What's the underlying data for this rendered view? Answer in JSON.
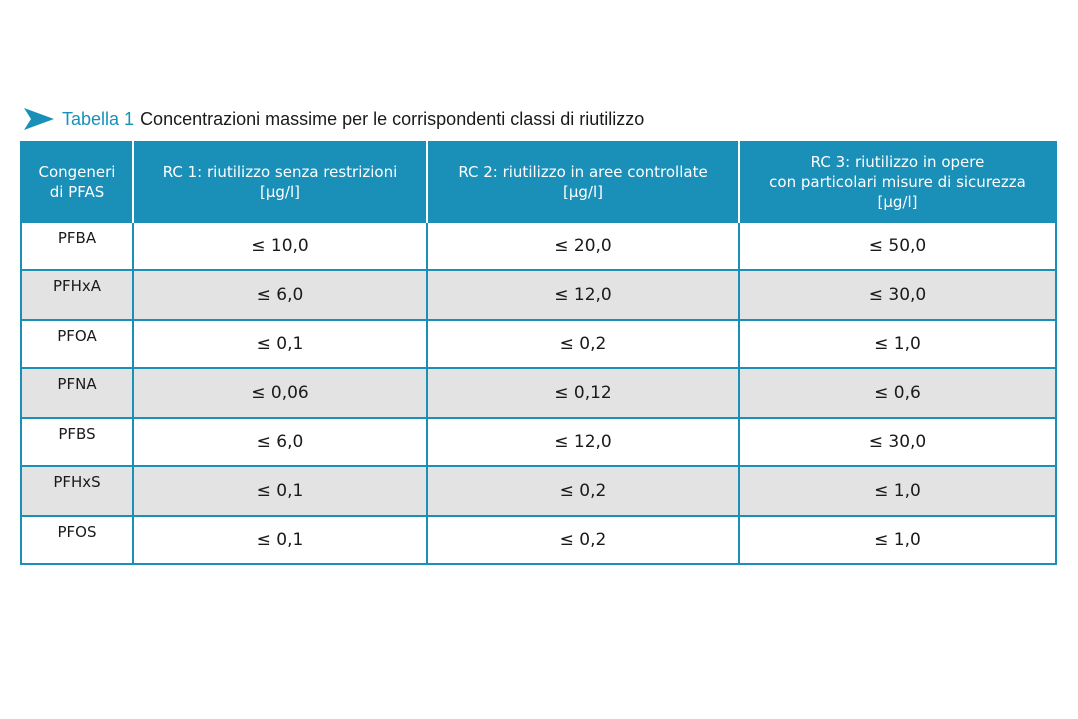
{
  "caption": {
    "label": "Tabella 1",
    "title": "Concentrazioni massime per le corrispondenti classi di riutilizzo",
    "accent_color": "#1a8fb8",
    "icon": "arrow-right-icon"
  },
  "table": {
    "header_color": "#1a8fb8",
    "shaded_row_color": "#e3e3e3",
    "headers": [
      {
        "line1": "Congeneri",
        "line2": "di PFAS",
        "line3": ""
      },
      {
        "line1": "RC 1: riutilizzo senza restrizioni",
        "line2": "[µg/l]",
        "line3": ""
      },
      {
        "line1": "RC 2: riutilizzo in aree controllate",
        "line2": "[µg/l]",
        "line3": ""
      },
      {
        "line1": "RC 3: riutilizzo in opere",
        "line2": "con particolari misure di sicurezza",
        "line3": "[µg/l]"
      }
    ],
    "rows": [
      {
        "name": "PFBA",
        "rc1": "≤ 10,0",
        "rc2": "≤ 20,0",
        "rc3": "≤ 50,0"
      },
      {
        "name": "PFHxA",
        "rc1": "≤ 6,0",
        "rc2": "≤ 12,0",
        "rc3": "≤ 30,0"
      },
      {
        "name": "PFOA",
        "rc1": "≤ 0,1",
        "rc2": "≤ 0,2",
        "rc3": "≤ 1,0"
      },
      {
        "name": "PFNA",
        "rc1": "≤ 0,06",
        "rc2": "≤ 0,12",
        "rc3": "≤ 0,6"
      },
      {
        "name": "PFBS",
        "rc1": "≤ 6,0",
        "rc2": "≤ 12,0",
        "rc3": "≤ 30,0"
      },
      {
        "name": "PFHxS",
        "rc1": "≤ 0,1",
        "rc2": "≤ 0,2",
        "rc3": "≤ 1,0"
      },
      {
        "name": "PFOS",
        "rc1": "≤ 0,1",
        "rc2": "≤ 0,2",
        "rc3": "≤ 1,0"
      }
    ]
  }
}
